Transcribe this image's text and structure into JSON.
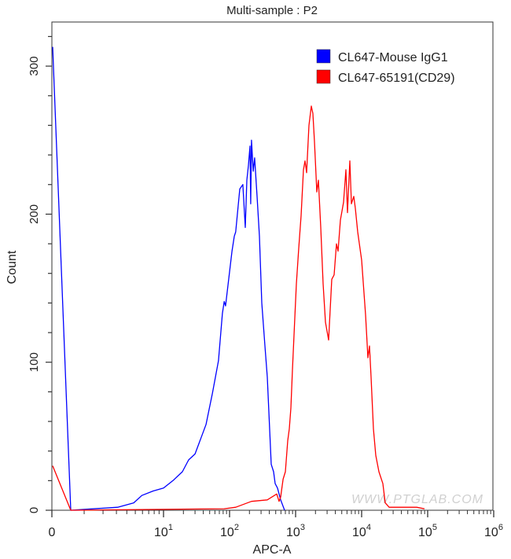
{
  "chart_data": {
    "type": "line",
    "title": "Multi-sample : P2",
    "xlabel": "APC-A",
    "ylabel": "Count",
    "x_scale": "biexponential (linear near 0, log above 10)",
    "xlim": [
      0,
      1000000
    ],
    "ylim": [
      0,
      330
    ],
    "x_ticks": [
      {
        "value": 0,
        "base": "0",
        "exp": ""
      },
      {
        "value": 10,
        "base": "10",
        "exp": "1"
      },
      {
        "value": 100,
        "base": "10",
        "exp": "2"
      },
      {
        "value": 1000,
        "base": "10",
        "exp": "3"
      },
      {
        "value": 10000,
        "base": "10",
        "exp": "4"
      },
      {
        "value": 100000,
        "base": "10",
        "exp": "5"
      },
      {
        "value": 1000000,
        "base": "10",
        "exp": "6"
      }
    ],
    "y_ticks": [
      "0",
      "100",
      "200",
      "300"
    ],
    "grid": false,
    "legend_position": "top-right",
    "watermark": "WWW.PTGLAB.COM",
    "series": [
      {
        "name": "CL647-Mouse IgG1",
        "color": "#0000ff",
        "x": [
          0,
          0.5,
          3.1,
          4.8,
          5.9,
          7.8,
          10,
          13.9,
          19.3,
          24,
          30,
          44,
          55,
          68,
          78,
          83,
          87,
          109,
          118,
          124,
          143,
          159,
          173,
          183,
          193,
          204,
          209,
          215,
          228,
          240,
          261,
          283,
          308,
          343,
          373,
          427,
          464,
          490,
          532,
          594,
          681
        ],
        "y": [
          313,
          0,
          2,
          5,
          10,
          13,
          15,
          20,
          26,
          34,
          38,
          58,
          79,
          101,
          133,
          141,
          138,
          175,
          185,
          188,
          217,
          220,
          191,
          223,
          233,
          246,
          207,
          250,
          229,
          238,
          212,
          185,
          140,
          111,
          90,
          31,
          26,
          18,
          15,
          7,
          0
        ]
      },
      {
        "name": "CL647-65191(CD29)",
        "color": "#ff0000",
        "x": [
          0,
          0.5,
          83,
          124,
          215,
          373,
          518,
          562,
          594,
          646,
          700,
          760,
          803,
          849,
          897,
          973,
          1028,
          1117,
          1212,
          1315,
          1389,
          1468,
          1594,
          1730,
          1828,
          1931,
          2096,
          2214,
          2403,
          2610,
          2833,
          3162,
          3530,
          3831,
          4159,
          4394,
          4770,
          5321,
          5777,
          6105,
          6624,
          7000,
          7600,
          8033,
          8716,
          10000,
          11480,
          12450,
          13150,
          13900,
          15100,
          16380,
          18290,
          20960,
          22760,
          26100,
          39400,
          68100,
          89600
        ],
        "y": [
          30,
          0,
          1,
          2,
          6,
          7,
          11,
          6,
          9,
          21,
          26,
          47,
          55,
          69,
          95,
          130,
          153,
          177,
          199,
          230,
          236,
          228,
          260,
          273,
          268,
          249,
          215,
          223,
          191,
          153,
          127,
          115,
          156,
          159,
          180,
          175,
          196,
          208,
          230,
          201,
          236,
          207,
          212,
          204,
          188,
          169,
          132,
          103,
          111,
          90,
          55,
          37,
          26,
          18,
          5,
          2,
          2,
          2,
          1
        ]
      }
    ]
  }
}
